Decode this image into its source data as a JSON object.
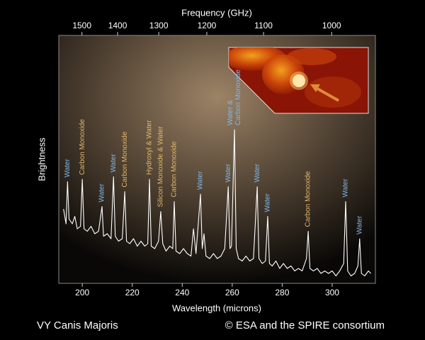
{
  "chart_data": {
    "type": "line",
    "xlabel": "Wavelength (microns)",
    "x2label": "Frequency (GHz)",
    "ylabel": "Brightness",
    "footer_left": "VY Canis Majoris",
    "footer_right": "© ESA and the SPIRE consortium",
    "color": "#ffffff",
    "xlim": [
      190.6,
      317.3
    ],
    "ylim": [
      0,
      100
    ],
    "xticks": [
      200,
      220,
      240,
      260,
      280,
      300
    ],
    "x2ticks": [
      1500,
      1400,
      1300,
      1200,
      1100,
      1000
    ],
    "x2_scale": "frequency",
    "x": [
      192.5,
      193.5,
      194.1,
      194.7,
      196,
      197,
      198,
      199.3,
      200,
      200.7,
      202,
      203.5,
      205,
      206.5,
      207.9,
      208.5,
      210,
      211.5,
      212.5,
      213.2,
      214.5,
      216,
      217,
      217.7,
      219,
      220.5,
      222,
      223.5,
      225,
      226.2,
      226.9,
      227.6,
      229,
      230.5,
      231.4,
      232.2,
      233.5,
      235,
      236.2,
      236.8,
      237.5,
      239,
      240.5,
      242,
      243.5,
      244.5,
      245.5,
      247.3,
      248,
      248.7,
      249.5,
      251,
      252.5,
      254,
      255.5,
      257,
      258.4,
      259.1,
      259.7,
      260.9,
      261.6,
      262.5,
      264,
      265.5,
      267,
      268.5,
      270,
      270.7,
      272,
      273.3,
      274.2,
      274.9,
      276,
      277.5,
      279,
      280.5,
      282,
      283.5,
      285,
      286.5,
      288,
      289.7,
      290.4,
      291.1,
      292.5,
      294,
      295.5,
      297,
      298.5,
      300,
      301.5,
      303,
      304.6,
      305.4,
      306.2,
      307.5,
      309,
      310.3,
      311,
      311.7,
      313,
      314.5,
      315.5
    ],
    "values": [
      30,
      24,
      41,
      26,
      24,
      27,
      22,
      23,
      42,
      22,
      21,
      23,
      20,
      21,
      31,
      19,
      20,
      18,
      43,
      19,
      17,
      18,
      37,
      17,
      16,
      18,
      15,
      17,
      15,
      16,
      42,
      15,
      14,
      17,
      29,
      16,
      13,
      15,
      14,
      33,
      13,
      12,
      14,
      12,
      11,
      22,
      12,
      36,
      14,
      20,
      11,
      10,
      12,
      10,
      11,
      14,
      39,
      14,
      15,
      62,
      14,
      10,
      9,
      11,
      9,
      10,
      39,
      10,
      8,
      9,
      27,
      8,
      7,
      9,
      6,
      8,
      6,
      7,
      5,
      6,
      5,
      10,
      21,
      6,
      5,
      6,
      4,
      5,
      4,
      5,
      3,
      5,
      8,
      33,
      5,
      3,
      4,
      7,
      18,
      4,
      3,
      5,
      4
    ],
    "annotations": [
      {
        "lines": [
          "Water"
        ],
        "x": 194.1,
        "y": 41,
        "color": "#7fb7e6"
      },
      {
        "lines": [
          "Carbon Monoxide"
        ],
        "x": 200,
        "y": 42,
        "color": "#e0b66a"
      },
      {
        "lines": [
          "Water"
        ],
        "x": 207.9,
        "y": 31,
        "color": "#7fb7e6"
      },
      {
        "lines": [
          "Water"
        ],
        "x": 212.5,
        "y": 43,
        "color": "#7fb7e6"
      },
      {
        "lines": [
          "Carbon Monoxide"
        ],
        "x": 217,
        "y": 37,
        "color": "#e0b66a"
      },
      {
        "lines": [
          "Hydroxyl & Water"
        ],
        "x": 226.9,
        "y": 42,
        "color": "#e0b66a"
      },
      {
        "lines": [
          "Silicon Monoxide & Water"
        ],
        "x": 231.4,
        "y": 29,
        "color": "#e0b66a"
      },
      {
        "lines": [
          "Carbon Monoxide"
        ],
        "x": 236.8,
        "y": 33,
        "color": "#e0b66a"
      },
      {
        "lines": [
          "Water"
        ],
        "x": 247.3,
        "y": 36,
        "color": "#7fb7e6"
      },
      {
        "lines": [
          "Water"
        ],
        "x": 258.4,
        "y": 39,
        "color": "#7fb7e6"
      },
      {
        "lines": [
          "Water &",
          "Carbon Monoxide"
        ],
        "x": 260.9,
        "y": 62,
        "color": "#7fb7e6"
      },
      {
        "lines": [
          "Water"
        ],
        "x": 270,
        "y": 39,
        "color": "#7fb7e6"
      },
      {
        "lines": [
          "Water"
        ],
        "x": 274.2,
        "y": 27,
        "color": "#7fb7e6"
      },
      {
        "lines": [
          "Carbon Monoxide"
        ],
        "x": 290.4,
        "y": 21,
        "color": "#e0b66a"
      },
      {
        "lines": [
          "Water"
        ],
        "x": 305.4,
        "y": 33,
        "color": "#7fb7e6"
      },
      {
        "lines": [
          "Water"
        ],
        "x": 311,
        "y": 18,
        "color": "#7fb7e6"
      }
    ]
  }
}
